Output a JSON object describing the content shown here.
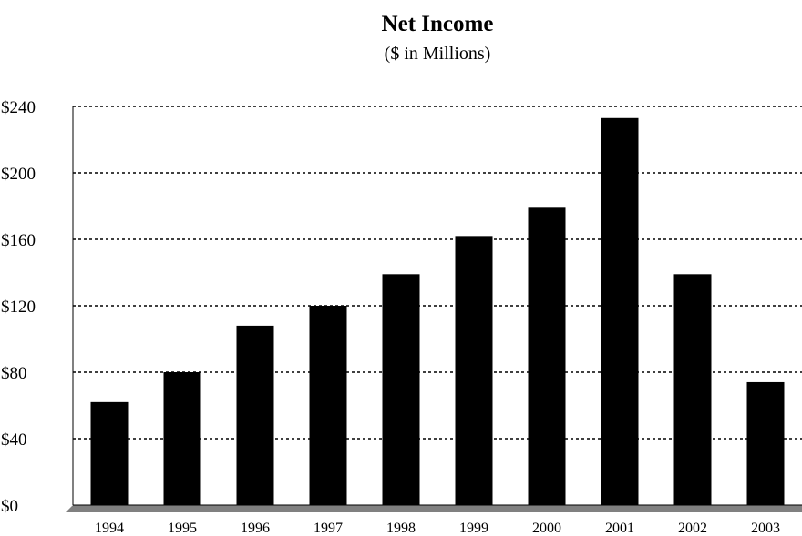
{
  "chart_data": {
    "type": "bar",
    "title": "Net Income",
    "subtitle": "($ in Millions)",
    "xlabel": "",
    "ylabel": "",
    "categories": [
      "1994",
      "1995",
      "1996",
      "1997",
      "1998",
      "1999",
      "2000",
      "2001",
      "2002",
      "2003"
    ],
    "values": [
      62,
      80,
      108,
      120,
      139,
      162,
      179,
      233,
      139,
      74
    ],
    "ylim": [
      0,
      240
    ],
    "yticks": [
      0,
      40,
      80,
      120,
      160,
      200,
      240
    ],
    "ytick_labels": [
      "$0",
      "$40",
      "$80",
      "$120",
      "$160",
      "$200",
      "$240"
    ],
    "grid": true,
    "grid_style": "dashed",
    "legend": "none",
    "colors": {
      "bar": "#000000",
      "grid": "#000000",
      "floor": "#808080",
      "background": "#ffffff"
    }
  }
}
